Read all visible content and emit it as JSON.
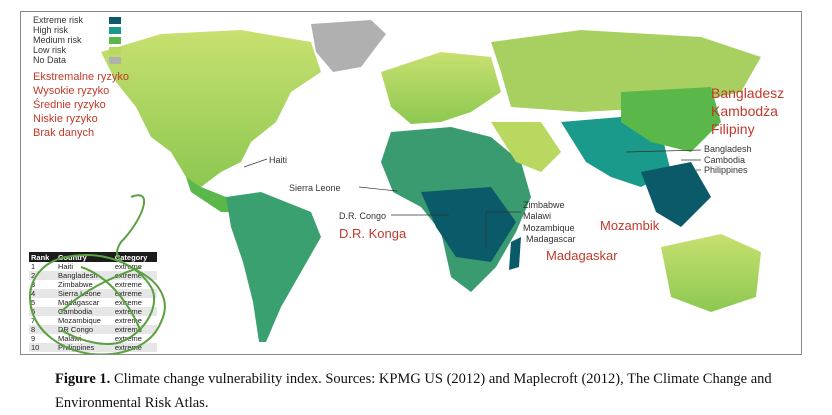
{
  "legend": {
    "items": [
      {
        "label": "Extreme risk",
        "color": "#0a5a6a"
      },
      {
        "label": "High risk",
        "color": "#1a9a8a"
      },
      {
        "label": "Medium risk",
        "color": "#5ab84a"
      },
      {
        "label": "Low risk",
        "color": "#b8d860"
      },
      {
        "label": "No Data",
        "color": "#b0b0b0"
      }
    ]
  },
  "polish_legend": [
    "Ekstremalne ryzyko",
    "Wysokie ryzyko",
    "Średnie ryzyko",
    "Niskie ryzyko",
    "Brak danych"
  ],
  "callouts": {
    "haiti": "Haiti",
    "sierra_leone": "Sierra Leone",
    "dr_congo": "D.R. Congo",
    "zimbabwe": "Zimbabwe",
    "malawi": "Malawi",
    "mozambique": "Mozambique",
    "madagascar": "Madagascar",
    "bangladesh": "Bangladesh",
    "cambodia": "Cambodia",
    "philippines": "Philippines"
  },
  "polish_labels": {
    "asia": [
      "Bangladesz",
      "Kambodża",
      "Filipiny"
    ],
    "dr_konga": "D.R. Konga",
    "mozambik": "Mozambik",
    "madagaskar": "Madagaskar"
  },
  "table": {
    "headers": [
      "Rank",
      "Country",
      "Category"
    ],
    "rows": [
      [
        "1",
        "Haiti",
        "extreme"
      ],
      [
        "2",
        "Bangladesh",
        "extreme"
      ],
      [
        "3",
        "Zimbabwe",
        "extreme"
      ],
      [
        "4",
        "Sierra Leone",
        "extreme"
      ],
      [
        "5",
        "Madagascar",
        "extreme"
      ],
      [
        "6",
        "Cambodia",
        "extreme"
      ],
      [
        "7",
        "Mozambique",
        "extreme"
      ],
      [
        "8",
        "DR Congo",
        "extreme"
      ],
      [
        "9",
        "Malawi",
        "extreme"
      ],
      [
        "10",
        "Philippines",
        "extreme"
      ]
    ]
  },
  "caption": {
    "label": "Figure 1.",
    "text": " Climate change vulnerability index. Sources: KPMG US (2012) and Maplecroft (2012), The Climate Change and Environmental Risk Atlas."
  }
}
